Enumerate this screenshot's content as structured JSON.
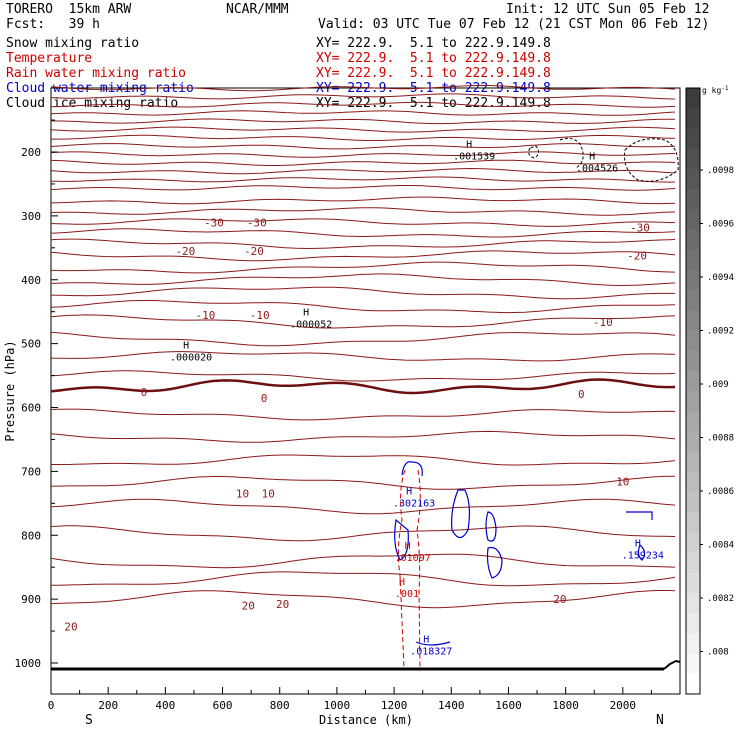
{
  "header": {
    "model": "TORERO  15km ARW",
    "center": "NCAR/MMM",
    "init": "Init: 12 UTC Sun 05 Feb 12",
    "fcst": "Fcst:   39 h",
    "valid": "Valid: 03 UTC Tue 07 Feb 12 (21 CST Mon 06 Feb 12)"
  },
  "legend": [
    {
      "label": "Snow mixing ratio",
      "color": "#000000",
      "xy": "XY= 222.9.  5.1 to 222.9.149.8"
    },
    {
      "label": "Temperature",
      "color": "#cc0000",
      "xy": "XY= 222.9.  5.1 to 222.9.149.8"
    },
    {
      "label": "Rain water mixing ratio",
      "color": "#cc0000",
      "xy": "XY= 222.9.  5.1 to 222.9.149.8"
    },
    {
      "label": "Cloud water mixing ratio",
      "color": "#0000cc",
      "xy": "XY= 222.9.  5.1 to 222.9.149.8"
    },
    {
      "label": "Cloud ice mixing ratio",
      "color": "#000000",
      "xy": "XY= 222.9.  5.1 to 222.9.149.8"
    }
  ],
  "chart_data": {
    "type": "cross-section",
    "xlabel": "Distance (km)",
    "ylabel": "Pressure (hPa)",
    "xlim": [
      0,
      2200
    ],
    "ylim": [
      1050,
      100
    ],
    "xticks": [
      0,
      200,
      400,
      600,
      800,
      1000,
      1200,
      1400,
      1600,
      1800,
      2000
    ],
    "yticks": [
      200,
      300,
      400,
      500,
      600,
      700,
      800,
      900,
      1000
    ],
    "left_end": "S",
    "right_end": "N",
    "temperature_color": "#8b1a1a",
    "temperature_labels": [
      {
        "text": "-30",
        "x": 570,
        "y": 310
      },
      {
        "text": "-30",
        "x": 720,
        "y": 310
      },
      {
        "text": "-30",
        "x": 2060,
        "y": 318
      },
      {
        "text": "-20",
        "x": 470,
        "y": 355
      },
      {
        "text": "-20",
        "x": 710,
        "y": 355
      },
      {
        "text": "-20",
        "x": 2050,
        "y": 362
      },
      {
        "text": "-10",
        "x": 540,
        "y": 455
      },
      {
        "text": "-10",
        "x": 730,
        "y": 455
      },
      {
        "text": "-10",
        "x": 1930,
        "y": 466
      },
      {
        "text": "0",
        "x": 325,
        "y": 576
      },
      {
        "text": "0",
        "x": 745,
        "y": 585
      },
      {
        "text": "0",
        "x": 1855,
        "y": 579
      },
      {
        "text": "10",
        "x": 670,
        "y": 735
      },
      {
        "text": "10",
        "x": 760,
        "y": 735
      },
      {
        "text": "10",
        "x": 2000,
        "y": 716
      },
      {
        "text": "20",
        "x": 70,
        "y": 943
      },
      {
        "text": "20",
        "x": 690,
        "y": 910
      },
      {
        "text": "20",
        "x": 810,
        "y": 908
      },
      {
        "text": "20",
        "x": 1780,
        "y": 900
      }
    ],
    "maxima": [
      {
        "text": ".001539",
        "x": 1480,
        "y": 207,
        "color": "#000000"
      },
      {
        "text": ".004526",
        "x": 1910,
        "y": 226,
        "color": "#000000"
      },
      {
        "text": ".000052",
        "x": 910,
        "y": 470,
        "color": "#000000"
      },
      {
        "text": ".000020",
        "x": 490,
        "y": 522,
        "color": "#000000"
      },
      {
        "text": ".302163",
        "x": 1270,
        "y": 750,
        "color": "#0000cc"
      },
      {
        "text": ".01097",
        "x": 1265,
        "y": 836,
        "color": "#cc0000"
      },
      {
        "text": ".001",
        "x": 1245,
        "y": 892,
        "color": "#cc0000"
      },
      {
        "text": ".159234",
        "x": 2070,
        "y": 832,
        "color": "#0000cc"
      },
      {
        "text": ".018327",
        "x": 1330,
        "y": 982,
        "color": "#0000cc"
      }
    ],
    "colorbar": {
      "unit": "g kg",
      "unit_exponent": "-1",
      "ticks": [
        ".0098",
        ".0096",
        ".0094",
        ".0092",
        ".009",
        ".0088",
        ".0086",
        ".0084",
        ".0082",
        ".008"
      ]
    }
  }
}
